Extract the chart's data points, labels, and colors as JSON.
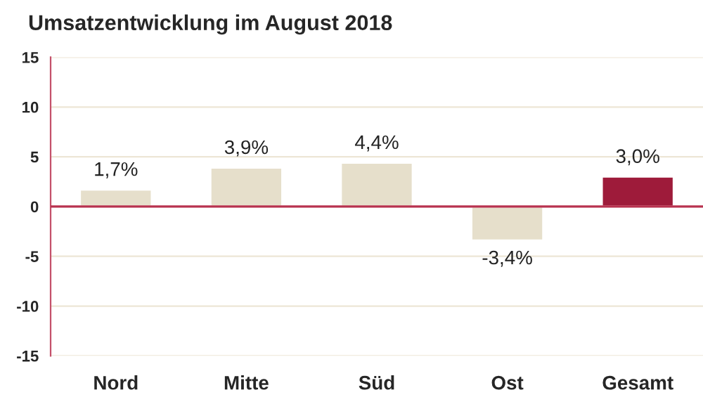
{
  "chart_data": {
    "type": "bar",
    "title": "Umsatzentwicklung im August 2018",
    "categories": [
      "Nord",
      "Mitte",
      "Süd",
      "Ost",
      "Gesamt"
    ],
    "values": [
      1.7,
      3.9,
      4.4,
      -3.4,
      3.0
    ],
    "colors": [
      "#e6dfcb",
      "#e6dfcb",
      "#e6dfcb",
      "#e6dfcb",
      "#9e1b3a"
    ],
    "value_labels": [
      "1,7%",
      "3,9%",
      "4,4%",
      "-3,4%",
      "3,0%"
    ],
    "ylim": [
      -15,
      15
    ],
    "yticks": [
      -15,
      -10,
      -5,
      0,
      5,
      10,
      15
    ],
    "ref_lines": [
      {
        "axis": "y",
        "value": 0,
        "color": "#b8324f"
      }
    ],
    "grid": "y"
  }
}
